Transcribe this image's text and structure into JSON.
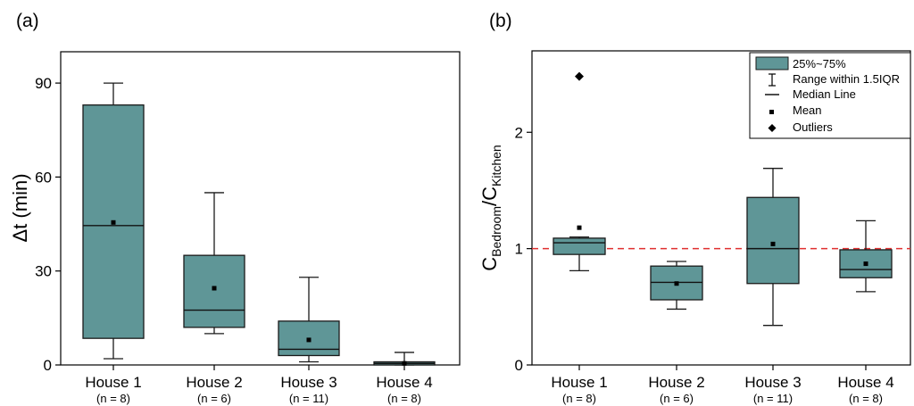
{
  "colors": {
    "box_fill": "#5f9697",
    "box_stroke": "#1a1a1a",
    "ref_line": "#e03030"
  },
  "chart_data": [
    {
      "type": "box",
      "panel_label": "(a)",
      "ylabel_prefix": "Δt",
      "ylabel_unit": "(min)",
      "ylim": [
        0,
        100
      ],
      "yticks": [
        0,
        30,
        60,
        90
      ],
      "categories": [
        "House 1",
        "House 2",
        "House 3",
        "House 4"
      ],
      "counts": [
        "(n = 8)",
        "(n = 6)",
        "(n = 11)",
        "(n = 8)"
      ],
      "boxes": [
        {
          "whisker_low": 2,
          "q1": 8.5,
          "median": 44.5,
          "q3": 83,
          "whisker_high": 90,
          "mean": 45.5
        },
        {
          "whisker_low": 10,
          "q1": 12,
          "median": 17.5,
          "q3": 35,
          "whisker_high": 55,
          "mean": 24.5
        },
        {
          "whisker_low": 1,
          "q1": 3,
          "median": 5,
          "q3": 14,
          "whisker_high": 28,
          "mean": 8
        },
        {
          "whisker_low": 0,
          "q1": 0,
          "median": 0.5,
          "q3": 1,
          "whisker_high": 4,
          "mean": 0.5
        }
      ],
      "outliers": []
    },
    {
      "type": "box",
      "panel_label": "(b)",
      "ylabel_sub1": "Bedroom",
      "ylabel_mid": "/C",
      "ylabel_sub2": "Kitchen",
      "ylabel_c": "C",
      "ylim": [
        0,
        2.7
      ],
      "yticks": [
        0,
        1,
        2
      ],
      "reference_line": 1,
      "categories": [
        "House 1",
        "House 2",
        "House 3",
        "House 4"
      ],
      "counts": [
        "(n = 8)",
        "(n = 6)",
        "(n = 11)",
        "(n = 8)"
      ],
      "boxes": [
        {
          "whisker_low": 0.81,
          "q1": 0.95,
          "median": 1.05,
          "q3": 1.09,
          "whisker_high": 1.1,
          "mean": 1.18
        },
        {
          "whisker_low": 0.48,
          "q1": 0.56,
          "median": 0.71,
          "q3": 0.85,
          "whisker_high": 0.89,
          "mean": 0.7
        },
        {
          "whisker_low": 0.34,
          "q1": 0.7,
          "median": 1.0,
          "q3": 1.44,
          "whisker_high": 1.69,
          "mean": 1.04
        },
        {
          "whisker_low": 0.63,
          "q1": 0.75,
          "median": 0.82,
          "q3": 0.99,
          "whisker_high": 1.24,
          "mean": 0.87
        }
      ],
      "outliers": [
        {
          "category": "House 1",
          "value": 2.48
        }
      ],
      "legend": {
        "position": "top-right",
        "entries": [
          "25%~75%",
          "Range within 1.5IQR",
          "Median Line",
          "Mean",
          "Outliers"
        ]
      }
    }
  ]
}
